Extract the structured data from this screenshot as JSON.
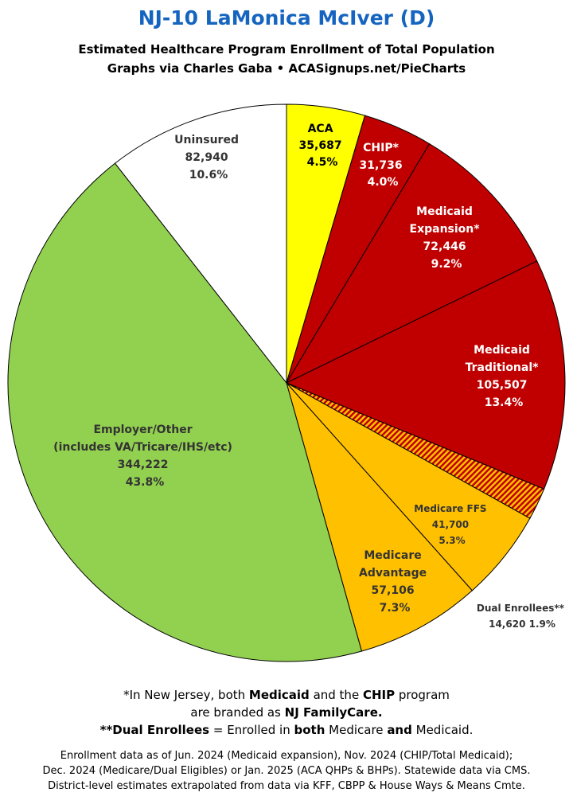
{
  "header": {
    "title": "NJ-10 LaMonica McIver (D)",
    "subtitle_line1": "Estimated Healthcare Program Enrollment of Total Population",
    "subtitle_line2": "Graphs via Charles Gaba  •  ACASignups.net/PieCharts"
  },
  "chart_data": {
    "type": "pie",
    "start_angle": "12 o'clock, clockwise",
    "slices": [
      {
        "label": "ACA",
        "value": 35687,
        "value_label": "35,687",
        "percent": "4.5%",
        "color": "#ffff00"
      },
      {
        "label": "CHIP*",
        "value": 31736,
        "value_label": "31,736",
        "percent": "4.0%",
        "color": "#c00000"
      },
      {
        "label": "Medicaid Expansion*",
        "value": 72446,
        "value_label": "72,446",
        "percent": "9.2%",
        "color": "#c00000"
      },
      {
        "label": "Medicaid Traditional*",
        "value": 105507,
        "value_label": "105,507",
        "percent": "13.4%",
        "color": "#c00000"
      },
      {
        "label": "Dual Enrollees**",
        "value": 14620,
        "value_label": "14,620",
        "percent": "1.9%",
        "color": "hatched-red-orange"
      },
      {
        "label": "Medicare FFS",
        "value": 41700,
        "value_label": "41,700",
        "percent": "5.3%",
        "color": "#ffc000"
      },
      {
        "label": "Medicare Advantage",
        "value": 57106,
        "value_label": "57,106",
        "percent": "7.3%",
        "color": "#ffc000"
      },
      {
        "label": "Employer/Other (includes VA/Tricare/IHS/etc)",
        "value": 344222,
        "value_label": "344,222",
        "percent": "43.8%",
        "color": "#92d050"
      },
      {
        "label": "Uninsured",
        "value": 82940,
        "value_label": "82,940",
        "percent": "10.6%",
        "color": "#ffffff"
      }
    ],
    "labels": {
      "aca": {
        "l1": "ACA",
        "l2": "35,687",
        "l3": "4.5%"
      },
      "chip": {
        "l1": "CHIP*",
        "l2": "31,736",
        "l3": "4.0%"
      },
      "mexp": {
        "l1": "Medicaid",
        "l2": "Expansion*",
        "l3": "72,446",
        "l4": "9.2%"
      },
      "mtrad": {
        "l1": "Medicaid",
        "l2": "Traditional*",
        "l3": "105,507",
        "l4": "13.4%"
      },
      "dual": {
        "l1": "Dual Enrollees**",
        "l2": "14,620 1.9%"
      },
      "mffs": {
        "l1": "Medicare FFS",
        "l2": "41,700",
        "l3": "5.3%"
      },
      "madv": {
        "l1": "Medicare",
        "l2": "Advantage",
        "l3": "57,106",
        "l4": "7.3%"
      },
      "emp": {
        "l1": "Employer/Other",
        "l2": "(includes VA/Tricare/IHS/etc)",
        "l3": "344,222",
        "l4": "43.8%"
      },
      "unins": {
        "l1": "Uninsured",
        "l2": "82,940",
        "l3": "10.6%"
      }
    }
  },
  "footnotes": {
    "f1_pre": "*In New Jersey, both ",
    "f1_b1": "Medicaid",
    "f1_mid": " and the ",
    "f1_b2": "CHIP",
    "f1_post": " program",
    "f2_pre": "are branded as ",
    "f2_b": "NJ FamilyCare.",
    "f3_b1": "**Dual Enrollees",
    "f3_mid1": " = Enrolled in ",
    "f3_b2": "both",
    "f3_mid2": " Medicare ",
    "f3_b3": "and",
    "f3_post": " Medicaid."
  },
  "sources": {
    "line1": "Enrollment data as of Jun. 2024 (Medicaid expansion), Nov. 2024 (CHIP/Total Medicaid);",
    "line2": "Dec. 2024 (Medicare/Dual Eligibles) or Jan. 2025 (ACA QHPs & BHPs). Statewide data via CMS.",
    "line3": "District-level estimates extrapolated from data via KFF, CBPP & House Ways & Means Cmte."
  }
}
